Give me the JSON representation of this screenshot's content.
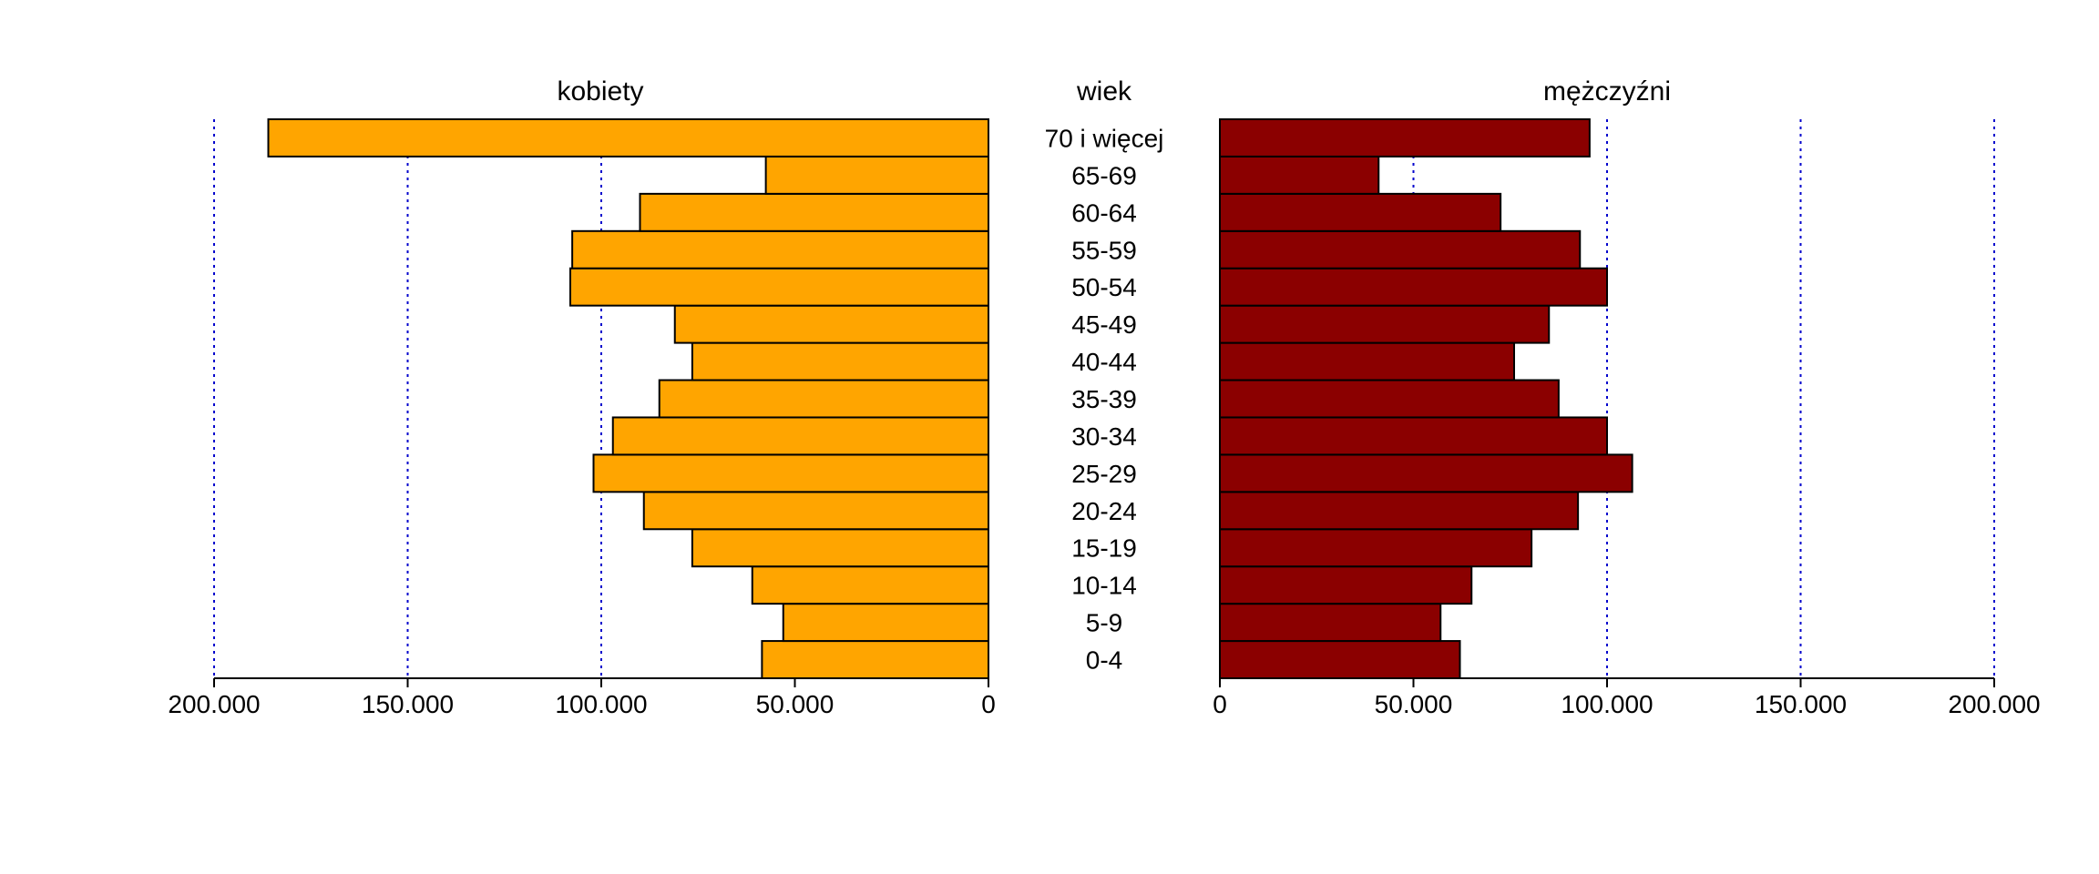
{
  "chart_data": {
    "type": "bar",
    "orientation": "horizontal",
    "subtype": "population-pyramid",
    "categories": [
      "0-4",
      "5-9",
      "10-14",
      "15-19",
      "20-24",
      "25-29",
      "30-34",
      "35-39",
      "40-44",
      "45-49",
      "50-54",
      "55-59",
      "60-64",
      "65-69",
      "70 i więcej"
    ],
    "center_header": "wiek",
    "series": [
      {
        "name": "kobiety",
        "side": "left",
        "color": "#ffa500",
        "values": [
          58500,
          53000,
          61000,
          76500,
          89000,
          102000,
          97000,
          85000,
          76500,
          81000,
          108000,
          107500,
          90000,
          57500,
          186000
        ]
      },
      {
        "name": "mężczyźni",
        "side": "right",
        "color": "#8b0000",
        "values": [
          62000,
          57000,
          65000,
          80500,
          92500,
          106500,
          100000,
          87500,
          76000,
          85000,
          100000,
          93000,
          72500,
          41000,
          95500
        ]
      }
    ],
    "xlim": [
      0,
      200000
    ],
    "xticks": [
      0,
      50000,
      100000,
      150000,
      200000
    ],
    "xtick_labels": [
      "0",
      "50.000",
      "100.000",
      "150.000",
      "200.000"
    ],
    "grid": "vertical dotted",
    "grid_color": "#0000cc",
    "bar_stroke": "#000000"
  }
}
